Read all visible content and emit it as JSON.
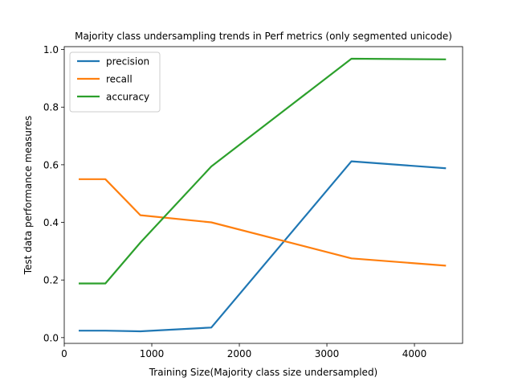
{
  "chart_data": {
    "type": "line",
    "title": "Majority class undersampling trends in Perf metrics (only segmented unicode)",
    "xlabel": "Training Size(Majority class size undersampled)",
    "ylabel": "Test data performance measures",
    "xlim": [
      0,
      4550
    ],
    "ylim": [
      -0.02,
      1.01
    ],
    "xticks": [
      0,
      1000,
      2000,
      3000,
      4000
    ],
    "xtick_labels": [
      "0",
      "1000",
      "2000",
      "3000",
      "4000"
    ],
    "yticks": [
      0.0,
      0.2,
      0.4,
      0.6,
      0.8,
      1.0
    ],
    "ytick_labels": [
      "0.0",
      "0.2",
      "0.4",
      "0.6",
      "0.8",
      "1.0"
    ],
    "grid": false,
    "legend_position": "upper-left",
    "x": [
      175,
      470,
      870,
      1680,
      3280,
      4350
    ],
    "series": [
      {
        "name": "precision",
        "color": "#1f77b4",
        "values": [
          0.024,
          0.024,
          0.022,
          0.035,
          0.612,
          0.588
        ]
      },
      {
        "name": "recall",
        "color": "#ff7f0e",
        "values": [
          0.55,
          0.55,
          0.425,
          0.4,
          0.275,
          0.25
        ]
      },
      {
        "name": "accuracy",
        "color": "#2ca02c",
        "values": [
          0.188,
          0.188,
          0.33,
          0.594,
          0.968,
          0.966
        ]
      }
    ]
  }
}
